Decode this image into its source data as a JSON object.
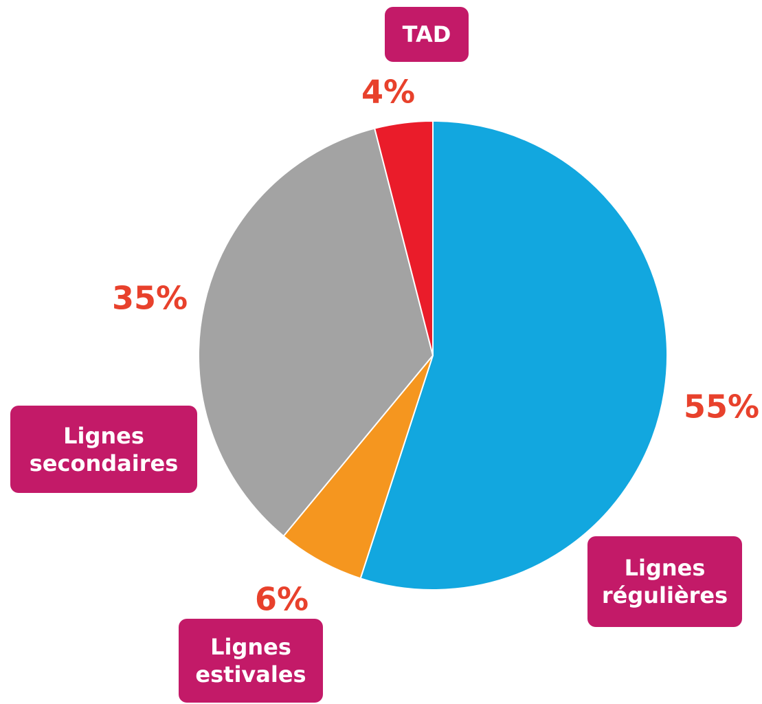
{
  "chart_data": {
    "type": "pie",
    "categories": [
      "Lignes régulières",
      "Lignes estivales",
      "Lignes secondaires",
      "TAD"
    ],
    "values": [
      55,
      6,
      35,
      4
    ],
    "value_labels": [
      "55%",
      "6%",
      "35%",
      "4%"
    ],
    "colors": [
      "#12a7df",
      "#f5961f",
      "#a3a3a3",
      "#ea1c2a"
    ]
  }
}
